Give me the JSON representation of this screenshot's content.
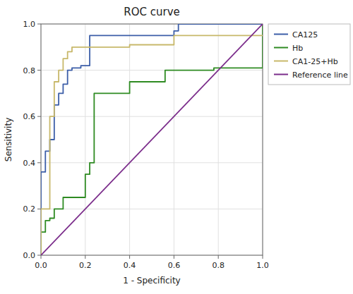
{
  "chart_data": {
    "type": "line",
    "title": "ROC curve",
    "x_label": "1 - Specificity",
    "y_label": "Sensitivity",
    "xlim": [
      0.0,
      1.0
    ],
    "ylim": [
      0.0,
      1.0
    ],
    "xticks": [
      {
        "value": 0.0,
        "label": "0.0"
      },
      0.2,
      0.4,
      0.6,
      0.8,
      {
        "value": 1.0,
        "label": "1.0"
      }
    ],
    "yticks": [
      {
        "value": 0.0,
        "label": "0.0"
      },
      0.2,
      0.4,
      0.6,
      0.8,
      {
        "value": 1.0,
        "label": "1.0"
      }
    ],
    "grid": true,
    "legend": "right",
    "series": [
      {
        "name": "CA125",
        "color": "#3C5EA8",
        "x": [
          0.0,
          0.0,
          0.02,
          0.02,
          0.04,
          0.04,
          0.06,
          0.06,
          0.08,
          0.08,
          0.1,
          0.1,
          0.12,
          0.12,
          0.14,
          0.14,
          0.16,
          0.16,
          0.18,
          0.18,
          0.2,
          0.2,
          0.22,
          0.22,
          0.44,
          0.44,
          0.46,
          0.46,
          0.6,
          0.6,
          0.62,
          0.62,
          1.0
        ],
        "values": [
          0.0,
          0.36,
          0.36,
          0.45,
          0.45,
          0.5,
          0.5,
          0.65,
          0.65,
          0.7,
          0.7,
          0.74,
          0.74,
          0.8,
          0.8,
          0.81,
          0.81,
          0.81,
          0.81,
          0.82,
          0.82,
          0.82,
          0.82,
          0.95,
          0.95,
          0.95,
          0.95,
          0.95,
          0.95,
          0.97,
          0.97,
          1.0,
          1.0
        ]
      },
      {
        "name": "Hb",
        "color": "#2E8B22",
        "x": [
          0.0,
          0.0,
          0.02,
          0.02,
          0.04,
          0.04,
          0.06,
          0.06,
          0.08,
          0.08,
          0.1,
          0.1,
          0.12,
          0.12,
          0.2,
          0.2,
          0.22,
          0.22,
          0.24,
          0.24,
          0.38,
          0.38,
          0.4,
          0.4,
          0.42,
          0.42,
          0.44,
          0.44,
          0.56,
          0.56,
          0.58,
          0.58,
          0.78,
          0.78,
          0.8,
          0.8,
          1.0,
          1.0
        ],
        "values": [
          0.0,
          0.1,
          0.1,
          0.15,
          0.15,
          0.16,
          0.16,
          0.2,
          0.2,
          0.2,
          0.2,
          0.25,
          0.25,
          0.25,
          0.25,
          0.35,
          0.35,
          0.4,
          0.4,
          0.7,
          0.7,
          0.7,
          0.7,
          0.75,
          0.75,
          0.75,
          0.75,
          0.75,
          0.75,
          0.8,
          0.8,
          0.8,
          0.8,
          0.81,
          0.81,
          0.81,
          0.81,
          1.0
        ]
      },
      {
        "name": "CA1-25+Hb",
        "color": "#C8B86A",
        "x": [
          0.0,
          0.0,
          0.02,
          0.02,
          0.04,
          0.04,
          0.06,
          0.06,
          0.08,
          0.08,
          0.1,
          0.1,
          0.12,
          0.12,
          0.14,
          0.14,
          0.16,
          0.16,
          0.2,
          0.2,
          0.22,
          0.22,
          0.4,
          0.4,
          0.6,
          0.6,
          0.62,
          0.62,
          0.8,
          0.8,
          1.0
        ],
        "values": [
          0.0,
          0.2,
          0.2,
          0.2,
          0.2,
          0.6,
          0.6,
          0.75,
          0.75,
          0.8,
          0.8,
          0.85,
          0.85,
          0.88,
          0.88,
          0.9,
          0.9,
          0.9,
          0.9,
          0.9,
          0.9,
          0.9,
          0.9,
          0.91,
          0.91,
          0.95,
          0.95,
          0.95,
          0.95,
          0.95,
          0.95
        ]
      },
      {
        "name": "Reference line",
        "color": "#7B2D8B",
        "x": [
          0,
          1
        ],
        "values": [
          0,
          1
        ]
      }
    ]
  }
}
